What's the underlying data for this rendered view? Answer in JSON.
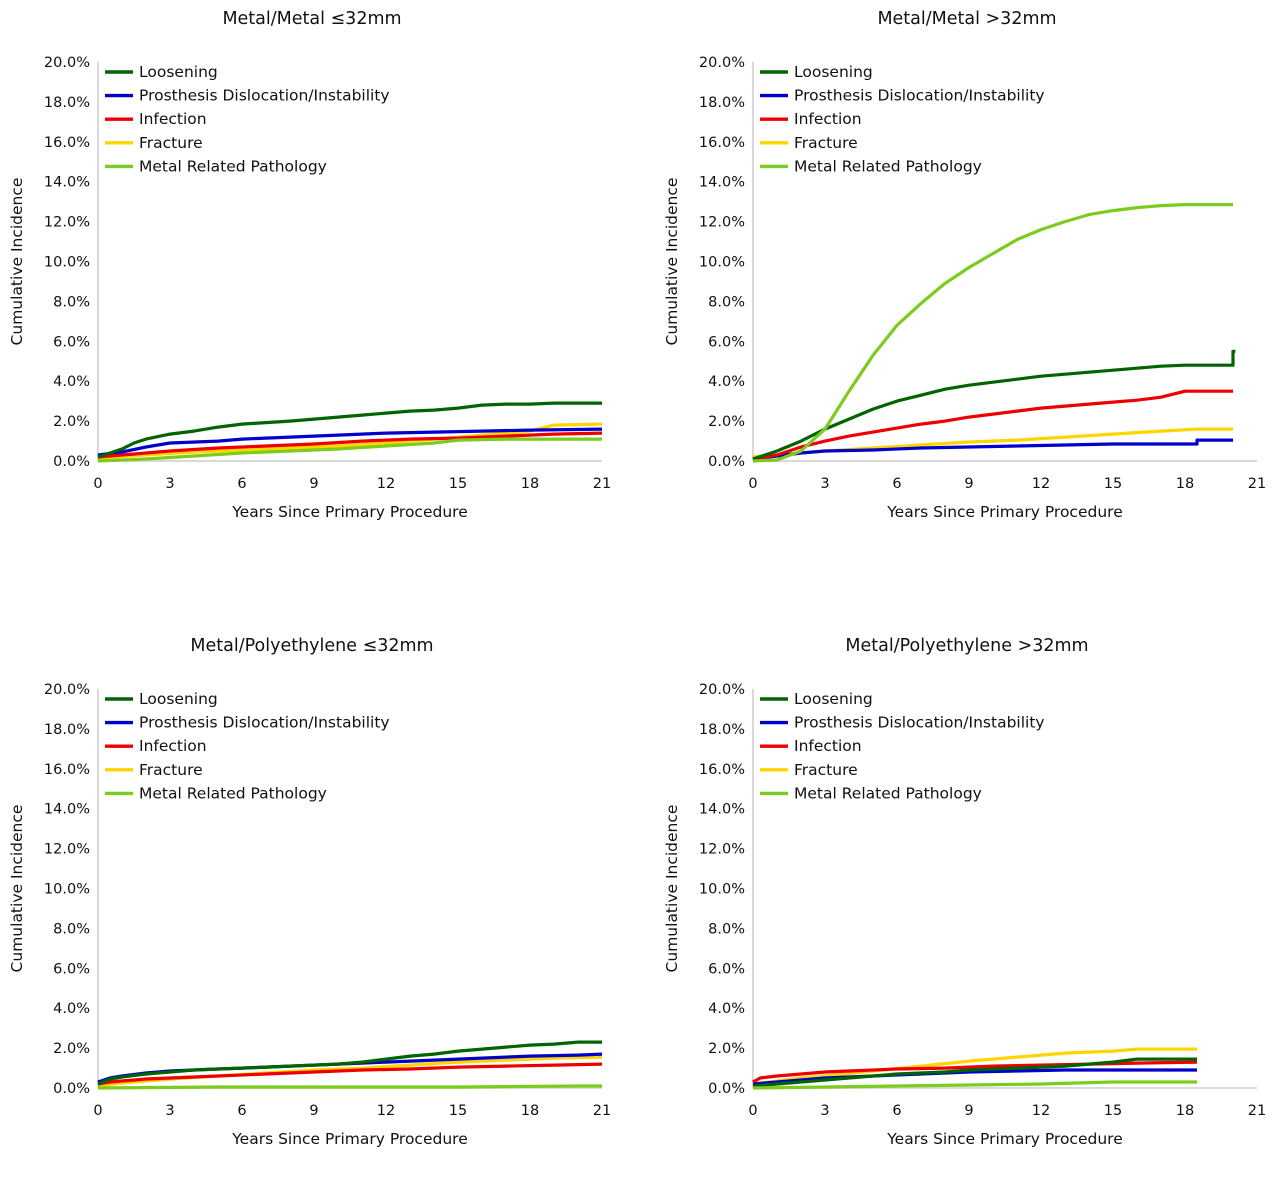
{
  "colors": {
    "loosening": "#006400",
    "dislocation": "#0000cc",
    "infection": "#ee0000",
    "fracture": "#ffd500",
    "metal": "#7ccc1e"
  },
  "chart_data": [
    {
      "type": "line",
      "title": "Metal/Metal ≤32mm",
      "xlabel": "Years Since Primary Procedure",
      "ylabel": "Cumulative Incidence",
      "xlim": [
        0,
        21
      ],
      "ylim": [
        0,
        20
      ],
      "xticks": [
        "0",
        "3",
        "6",
        "9",
        "12",
        "15",
        "18",
        "21"
      ],
      "yticks": [
        "0.0%",
        "2.0%",
        "4.0%",
        "6.0%",
        "8.0%",
        "10.0%",
        "12.0%",
        "14.0%",
        "16.0%",
        "18.0%",
        "20.0%"
      ],
      "legend_position": "top-left",
      "grid": false,
      "series": [
        {
          "name": "Loosening",
          "color_key": "loosening",
          "x": [
            0,
            0.5,
            1,
            1.5,
            2,
            3,
            4,
            5,
            6,
            8,
            9,
            10,
            11,
            12,
            13,
            14,
            15,
            16,
            17,
            18,
            19,
            20,
            21
          ],
          "y": [
            0.2,
            0.4,
            0.6,
            0.9,
            1.1,
            1.35,
            1.5,
            1.7,
            1.85,
            2.0,
            2.1,
            2.2,
            2.3,
            2.4,
            2.5,
            2.55,
            2.65,
            2.8,
            2.85,
            2.85,
            2.9,
            2.9,
            2.9
          ]
        },
        {
          "name": "Prosthesis Dislocation/Instability",
          "color_key": "dislocation",
          "x": [
            0,
            1,
            2,
            3,
            5,
            6,
            8,
            10,
            12,
            14,
            16,
            18,
            21
          ],
          "y": [
            0.3,
            0.45,
            0.7,
            0.9,
            1.0,
            1.1,
            1.2,
            1.3,
            1.4,
            1.45,
            1.5,
            1.55,
            1.6
          ]
        },
        {
          "name": "Infection",
          "color_key": "infection",
          "x": [
            0,
            1,
            3,
            5,
            7,
            9,
            11,
            13,
            15,
            17,
            19,
            21
          ],
          "y": [
            0.2,
            0.3,
            0.5,
            0.65,
            0.75,
            0.85,
            1.0,
            1.1,
            1.15,
            1.25,
            1.35,
            1.4
          ]
        },
        {
          "name": "Fracture",
          "color_key": "fracture",
          "x": [
            0,
            2,
            4,
            6,
            8,
            10,
            12,
            14,
            16,
            18,
            19,
            21
          ],
          "y": [
            0.15,
            0.3,
            0.45,
            0.55,
            0.65,
            0.75,
            0.9,
            1.1,
            1.3,
            1.5,
            1.8,
            1.85
          ]
        },
        {
          "name": "Metal Related Pathology",
          "color_key": "metal",
          "x": [
            0,
            2,
            4,
            6,
            8,
            10,
            12,
            14,
            15,
            17,
            19,
            21
          ],
          "y": [
            0.0,
            0.1,
            0.25,
            0.4,
            0.5,
            0.6,
            0.75,
            0.9,
            1.05,
            1.1,
            1.1,
            1.1
          ]
        }
      ]
    },
    {
      "type": "line",
      "title": "Metal/Metal >32mm",
      "xlabel": "Years Since Primary Procedure",
      "ylabel": "Cumulative Incidence",
      "xlim": [
        0,
        21
      ],
      "ylim": [
        0,
        20
      ],
      "xticks": [
        "0",
        "3",
        "6",
        "9",
        "12",
        "15",
        "18",
        "21"
      ],
      "yticks": [
        "0.0%",
        "2.0%",
        "4.0%",
        "6.0%",
        "8.0%",
        "10.0%",
        "12.0%",
        "14.0%",
        "16.0%",
        "18.0%",
        "20.0%"
      ],
      "legend_position": "top-left",
      "grid": false,
      "series": [
        {
          "name": "Loosening",
          "color_key": "loosening",
          "x": [
            0,
            1,
            2,
            3,
            4,
            5,
            6,
            7,
            8,
            9,
            10,
            11,
            12,
            13,
            14,
            15,
            16,
            17,
            18,
            19,
            20,
            20,
            20.1
          ],
          "y": [
            0.1,
            0.5,
            1.0,
            1.6,
            2.1,
            2.6,
            3.0,
            3.3,
            3.6,
            3.8,
            3.95,
            4.1,
            4.25,
            4.35,
            4.45,
            4.55,
            4.65,
            4.75,
            4.8,
            4.8,
            4.8,
            5.5,
            5.5
          ]
        },
        {
          "name": "Prosthesis Dislocation/Instability",
          "color_key": "dislocation",
          "x": [
            0,
            1,
            2,
            3,
            5,
            7,
            9,
            11,
            13,
            15,
            17,
            18.5,
            18.5,
            20
          ],
          "y": [
            0.1,
            0.25,
            0.4,
            0.5,
            0.55,
            0.65,
            0.7,
            0.75,
            0.8,
            0.85,
            0.85,
            0.85,
            1.05,
            1.05
          ]
        },
        {
          "name": "Infection",
          "color_key": "infection",
          "x": [
            0,
            1,
            2,
            3,
            4,
            5,
            6,
            7,
            8,
            9,
            10,
            11,
            12,
            13,
            14,
            15,
            16,
            17,
            18,
            20
          ],
          "y": [
            0.1,
            0.3,
            0.7,
            1.0,
            1.25,
            1.45,
            1.65,
            1.85,
            2.0,
            2.2,
            2.35,
            2.5,
            2.65,
            2.75,
            2.85,
            2.95,
            3.05,
            3.2,
            3.5,
            3.5
          ]
        },
        {
          "name": "Fracture",
          "color_key": "fracture",
          "x": [
            0,
            1,
            2,
            3,
            5,
            7,
            9,
            11,
            13,
            15,
            17,
            18.5,
            20
          ],
          "y": [
            0.2,
            0.3,
            0.4,
            0.5,
            0.65,
            0.8,
            0.95,
            1.05,
            1.2,
            1.35,
            1.5,
            1.6,
            1.6
          ]
        },
        {
          "name": "Metal Related Pathology",
          "color_key": "metal",
          "x": [
            0,
            1,
            2,
            3,
            4,
            5,
            6,
            7,
            8,
            9,
            10,
            11,
            12,
            13,
            14,
            15,
            16,
            17,
            18,
            20
          ],
          "y": [
            0.0,
            0.05,
            0.5,
            1.6,
            3.5,
            5.3,
            6.8,
            7.9,
            8.9,
            9.7,
            10.4,
            11.1,
            11.6,
            12.0,
            12.35,
            12.55,
            12.7,
            12.8,
            12.85,
            12.85
          ]
        }
      ]
    },
    {
      "type": "line",
      "title": "Metal/Polyethylene ≤32mm",
      "xlabel": "Years Since Primary Procedure",
      "ylabel": "Cumulative Incidence",
      "xlim": [
        0,
        21
      ],
      "ylim": [
        0,
        20
      ],
      "xticks": [
        "0",
        "3",
        "6",
        "9",
        "12",
        "15",
        "18",
        "21"
      ],
      "yticks": [
        "0.0%",
        "2.0%",
        "4.0%",
        "6.0%",
        "8.0%",
        "10.0%",
        "12.0%",
        "14.0%",
        "16.0%",
        "18.0%",
        "20.0%"
      ],
      "legend_position": "top-left",
      "grid": false,
      "series": [
        {
          "name": "Loosening",
          "color_key": "loosening",
          "x": [
            0,
            0.5,
            1,
            2,
            3,
            4,
            5,
            6,
            7,
            8,
            9,
            10,
            11,
            12,
            13,
            14,
            15,
            16,
            17,
            18,
            19,
            20,
            21
          ],
          "y": [
            0.2,
            0.45,
            0.55,
            0.7,
            0.8,
            0.9,
            0.95,
            1.0,
            1.05,
            1.1,
            1.15,
            1.2,
            1.3,
            1.45,
            1.6,
            1.7,
            1.85,
            1.95,
            2.05,
            2.15,
            2.2,
            2.3,
            2.3
          ]
        },
        {
          "name": "Prosthesis Dislocation/Instability",
          "color_key": "dislocation",
          "x": [
            0,
            0.5,
            1,
            2,
            3,
            4,
            5,
            6,
            8,
            10,
            12,
            14,
            16,
            18,
            20,
            21
          ],
          "y": [
            0.3,
            0.5,
            0.6,
            0.75,
            0.85,
            0.9,
            0.95,
            1.0,
            1.1,
            1.2,
            1.3,
            1.4,
            1.5,
            1.6,
            1.65,
            1.7
          ]
        },
        {
          "name": "Infection",
          "color_key": "infection",
          "x": [
            0,
            0.5,
            1,
            2,
            3,
            5,
            7,
            9,
            11,
            13,
            15,
            17,
            19,
            21
          ],
          "y": [
            0.2,
            0.3,
            0.35,
            0.45,
            0.5,
            0.6,
            0.7,
            0.8,
            0.9,
            0.95,
            1.05,
            1.1,
            1.15,
            1.2
          ]
        },
        {
          "name": "Fracture",
          "color_key": "fracture",
          "x": [
            0,
            1,
            2,
            3,
            5,
            7,
            9,
            11,
            13,
            15,
            17,
            19,
            21
          ],
          "y": [
            0.1,
            0.25,
            0.35,
            0.45,
            0.6,
            0.75,
            0.9,
            1.0,
            1.15,
            1.3,
            1.4,
            1.5,
            1.55
          ]
        },
        {
          "name": "Metal Related Pathology",
          "color_key": "metal",
          "x": [
            0,
            5,
            10,
            15,
            20,
            21
          ],
          "y": [
            0.0,
            0.05,
            0.05,
            0.05,
            0.1,
            0.1
          ]
        }
      ]
    },
    {
      "type": "line",
      "title": "Metal/Polyethylene >32mm",
      "xlabel": "Years Since Primary Procedure",
      "ylabel": "Cumulative Incidence",
      "xlim": [
        0,
        21
      ],
      "ylim": [
        0,
        20
      ],
      "xticks": [
        "0",
        "3",
        "6",
        "9",
        "12",
        "15",
        "18",
        "21"
      ],
      "yticks": [
        "0.0%",
        "2.0%",
        "4.0%",
        "6.0%",
        "8.0%",
        "10.0%",
        "12.0%",
        "14.0%",
        "16.0%",
        "18.0%",
        "20.0%"
      ],
      "legend_position": "top-left",
      "grid": false,
      "series": [
        {
          "name": "Loosening",
          "color_key": "loosening",
          "x": [
            0,
            1,
            2,
            3,
            4,
            5,
            6,
            7,
            8,
            9,
            10,
            11,
            12,
            13,
            14,
            15,
            16,
            17,
            18.5
          ],
          "y": [
            0.1,
            0.2,
            0.3,
            0.4,
            0.5,
            0.6,
            0.7,
            0.75,
            0.8,
            0.9,
            0.95,
            1.0,
            1.05,
            1.1,
            1.2,
            1.3,
            1.45,
            1.45,
            1.45
          ]
        },
        {
          "name": "Prosthesis Dislocation/Instability",
          "color_key": "dislocation",
          "x": [
            0,
            1,
            2,
            3,
            5,
            7,
            9,
            11,
            13,
            15,
            17,
            18.5
          ],
          "y": [
            0.2,
            0.3,
            0.4,
            0.5,
            0.6,
            0.7,
            0.8,
            0.85,
            0.9,
            0.9,
            0.9,
            0.9
          ]
        },
        {
          "name": "Infection",
          "color_key": "infection",
          "x": [
            0,
            0.3,
            1,
            2,
            3,
            4,
            6,
            8,
            10,
            12,
            14,
            16,
            18.5
          ],
          "y": [
            0.3,
            0.5,
            0.6,
            0.7,
            0.8,
            0.85,
            0.95,
            1.0,
            1.1,
            1.15,
            1.2,
            1.25,
            1.3
          ]
        },
        {
          "name": "Fracture",
          "color_key": "fracture",
          "x": [
            0,
            1,
            2,
            3,
            5,
            7,
            9,
            11,
            13,
            15,
            16,
            18.5
          ],
          "y": [
            0.2,
            0.35,
            0.5,
            0.6,
            0.85,
            1.1,
            1.35,
            1.55,
            1.75,
            1.85,
            1.95,
            1.95
          ]
        },
        {
          "name": "Metal Related Pathology",
          "color_key": "metal",
          "x": [
            0,
            3,
            6,
            9,
            12,
            15,
            18.5
          ],
          "y": [
            0.0,
            0.05,
            0.1,
            0.15,
            0.2,
            0.3,
            0.3
          ]
        }
      ]
    }
  ]
}
